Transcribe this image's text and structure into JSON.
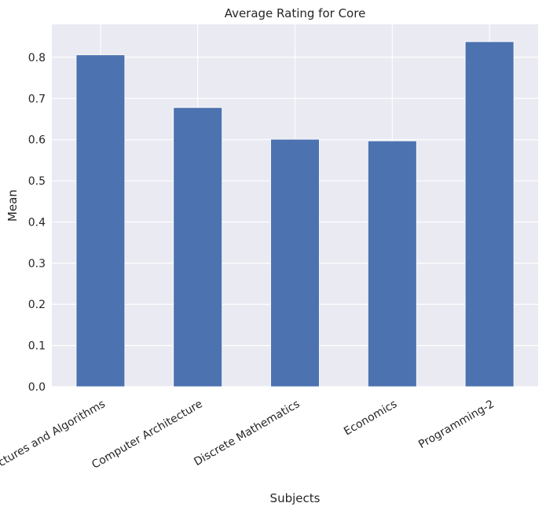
{
  "chart_data": {
    "type": "bar",
    "title": "Average Rating for Core",
    "xlabel": "Subjects",
    "ylabel": "Mean",
    "categories": [
      "Data Structures and Algorithms",
      "Computer Architecture",
      "Discrete Mathematics",
      "Economics",
      "Programming-2"
    ],
    "values": [
      0.806,
      0.678,
      0.601,
      0.597,
      0.838
    ],
    "ylim": [
      0,
      0.88
    ],
    "yticks": [
      "0.0",
      "0.1",
      "0.2",
      "0.3",
      "0.4",
      "0.5",
      "0.6",
      "0.7",
      "0.8"
    ],
    "grid": true,
    "legend": "none",
    "colors": {
      "bar": "#4c72b0",
      "plot_background": "#eaeaf2",
      "grid": "#ffffff"
    }
  }
}
